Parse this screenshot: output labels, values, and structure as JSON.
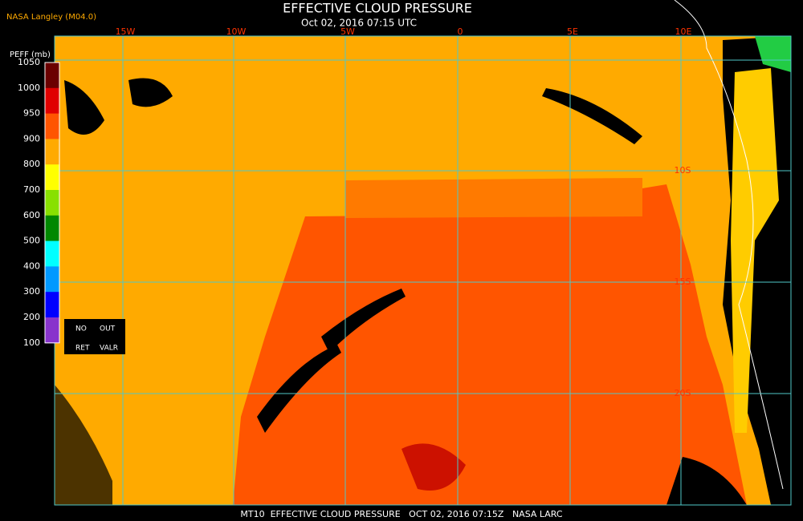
{
  "header": {
    "source": "NASA Langley (M04.0)",
    "title": "EFFECTIVE CLOUD PRESSURE",
    "subtitle": "Oct 02, 2016 07:15 UTC"
  },
  "colorbar": {
    "label": "PEFF (mb)",
    "ticks": [
      1050,
      1000,
      950,
      900,
      800,
      700,
      600,
      500,
      400,
      300,
      200,
      100
    ],
    "colors": [
      "#6b0000",
      "#e00000",
      "#ff5500",
      "#ffaa00",
      "#ffff00",
      "#88e000",
      "#008800",
      "#00ffff",
      "#0099ff",
      "#0000ff",
      "#8833cc"
    ],
    "flags": [
      "NO",
      "OUT",
      "RET",
      "VALR"
    ]
  },
  "map": {
    "lon_labels": [
      "15W",
      "10W",
      "5W",
      "0",
      "5E",
      "10E"
    ],
    "lat_labels": [
      "10S",
      "15S",
      "20S"
    ]
  },
  "footer": "MT10  EFFECTIVE CLOUD PRESSURE   OCT 02, 2016 07:15Z   NASA LARC"
}
